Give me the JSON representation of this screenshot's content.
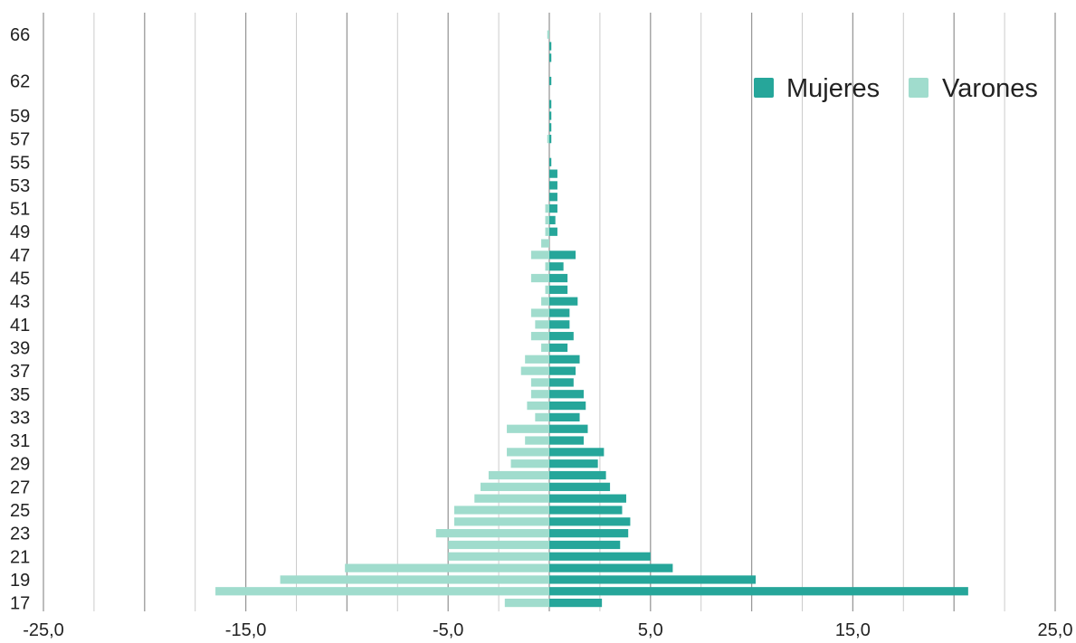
{
  "chart_data": {
    "type": "bar",
    "orientation": "horizontal",
    "layout": "population-pyramid",
    "categories": [
      "17",
      "18",
      "19",
      "20",
      "21",
      "22",
      "23",
      "24",
      "25",
      "26",
      "27",
      "28",
      "29",
      "30",
      "31",
      "32",
      "33",
      "34",
      "35",
      "36",
      "37",
      "38",
      "39",
      "40",
      "41",
      "42",
      "43",
      "44",
      "45",
      "46",
      "47",
      "48",
      "49",
      "50",
      "51",
      "52",
      "53",
      "54",
      "55",
      "56",
      "57",
      "58",
      "59",
      "60",
      "61",
      "62",
      "63",
      "64",
      "65",
      "66",
      "67"
    ],
    "y_tick_labels": [
      "17",
      "19",
      "21",
      "23",
      "25",
      "27",
      "29",
      "31",
      "33",
      "35",
      "37",
      "39",
      "41",
      "43",
      "45",
      "47",
      "49",
      "51",
      "53",
      "55",
      "57",
      "59",
      "62",
      "66"
    ],
    "series": [
      {
        "name": "Mujeres",
        "color": "#26a69a",
        "values": [
          2.6,
          20.7,
          10.2,
          6.1,
          5.0,
          3.5,
          3.9,
          4.0,
          3.6,
          3.8,
          3.0,
          2.8,
          2.4,
          2.7,
          1.7,
          1.9,
          1.5,
          1.8,
          1.7,
          1.2,
          1.3,
          1.5,
          0.9,
          1.2,
          1.0,
          1.0,
          1.4,
          0.9,
          0.9,
          0.7,
          1.3,
          0.0,
          0.4,
          0.3,
          0.4,
          0.4,
          0.4,
          0.4,
          0.1,
          0.0,
          0.1,
          0.1,
          0.1,
          0.1,
          0.0,
          0.1,
          0.0,
          0.1,
          0.1,
          0.0,
          0.0
        ]
      },
      {
        "name": "Varones",
        "color": "#a0dccd",
        "values": [
          -2.2,
          -16.5,
          -13.3,
          -10.1,
          -5.0,
          -5.0,
          -5.6,
          -4.7,
          -4.7,
          -3.7,
          -3.4,
          -3.0,
          -1.9,
          -2.1,
          -1.2,
          -2.1,
          -0.7,
          -1.1,
          -0.9,
          -0.9,
          -1.4,
          -1.2,
          -0.4,
          -0.9,
          -0.7,
          -0.9,
          -0.4,
          -0.2,
          -0.9,
          -0.2,
          -0.9,
          -0.4,
          -0.2,
          -0.2,
          -0.2,
          0.0,
          0.0,
          0.0,
          0.0,
          0.0,
          -0.1,
          0.0,
          0.0,
          0.0,
          0.0,
          0.0,
          0.0,
          0.0,
          0.0,
          -0.1,
          0.0
        ]
      }
    ],
    "x_ticks": [
      {
        "value": -25,
        "label": "-25,0"
      },
      {
        "value": -15,
        "label": "-15,0"
      },
      {
        "value": -5,
        "label": "-5,0"
      },
      {
        "value": 5,
        "label": "5,0"
      },
      {
        "value": 15,
        "label": "15,0"
      },
      {
        "value": 25,
        "label": "25,0"
      }
    ],
    "xlim": [
      -25,
      25
    ],
    "grid_step": 2.5,
    "grid": true,
    "title": "",
    "xlabel": "",
    "ylabel": "",
    "legend": {
      "position": "top-right",
      "entries": [
        {
          "label": "Mujeres",
          "color": "#26a69a"
        },
        {
          "label": "Varones",
          "color": "#a0dccd"
        }
      ]
    }
  }
}
